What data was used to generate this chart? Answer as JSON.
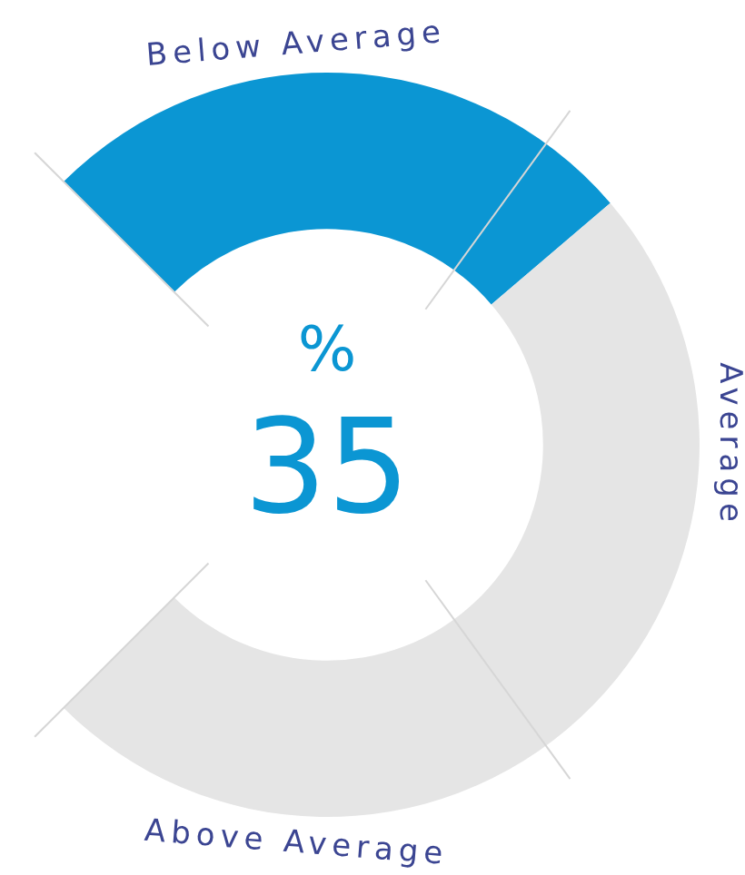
{
  "chart_data": {
    "type": "donut",
    "categories": [
      null,
      null
    ],
    "values": [
      35,
      65
    ],
    "colors": [
      "#0b96d3",
      "#e5e5e5"
    ],
    "annotations": [
      "%",
      "35",
      "Below Average",
      "Average",
      "Above Average"
    ]
  }
}
